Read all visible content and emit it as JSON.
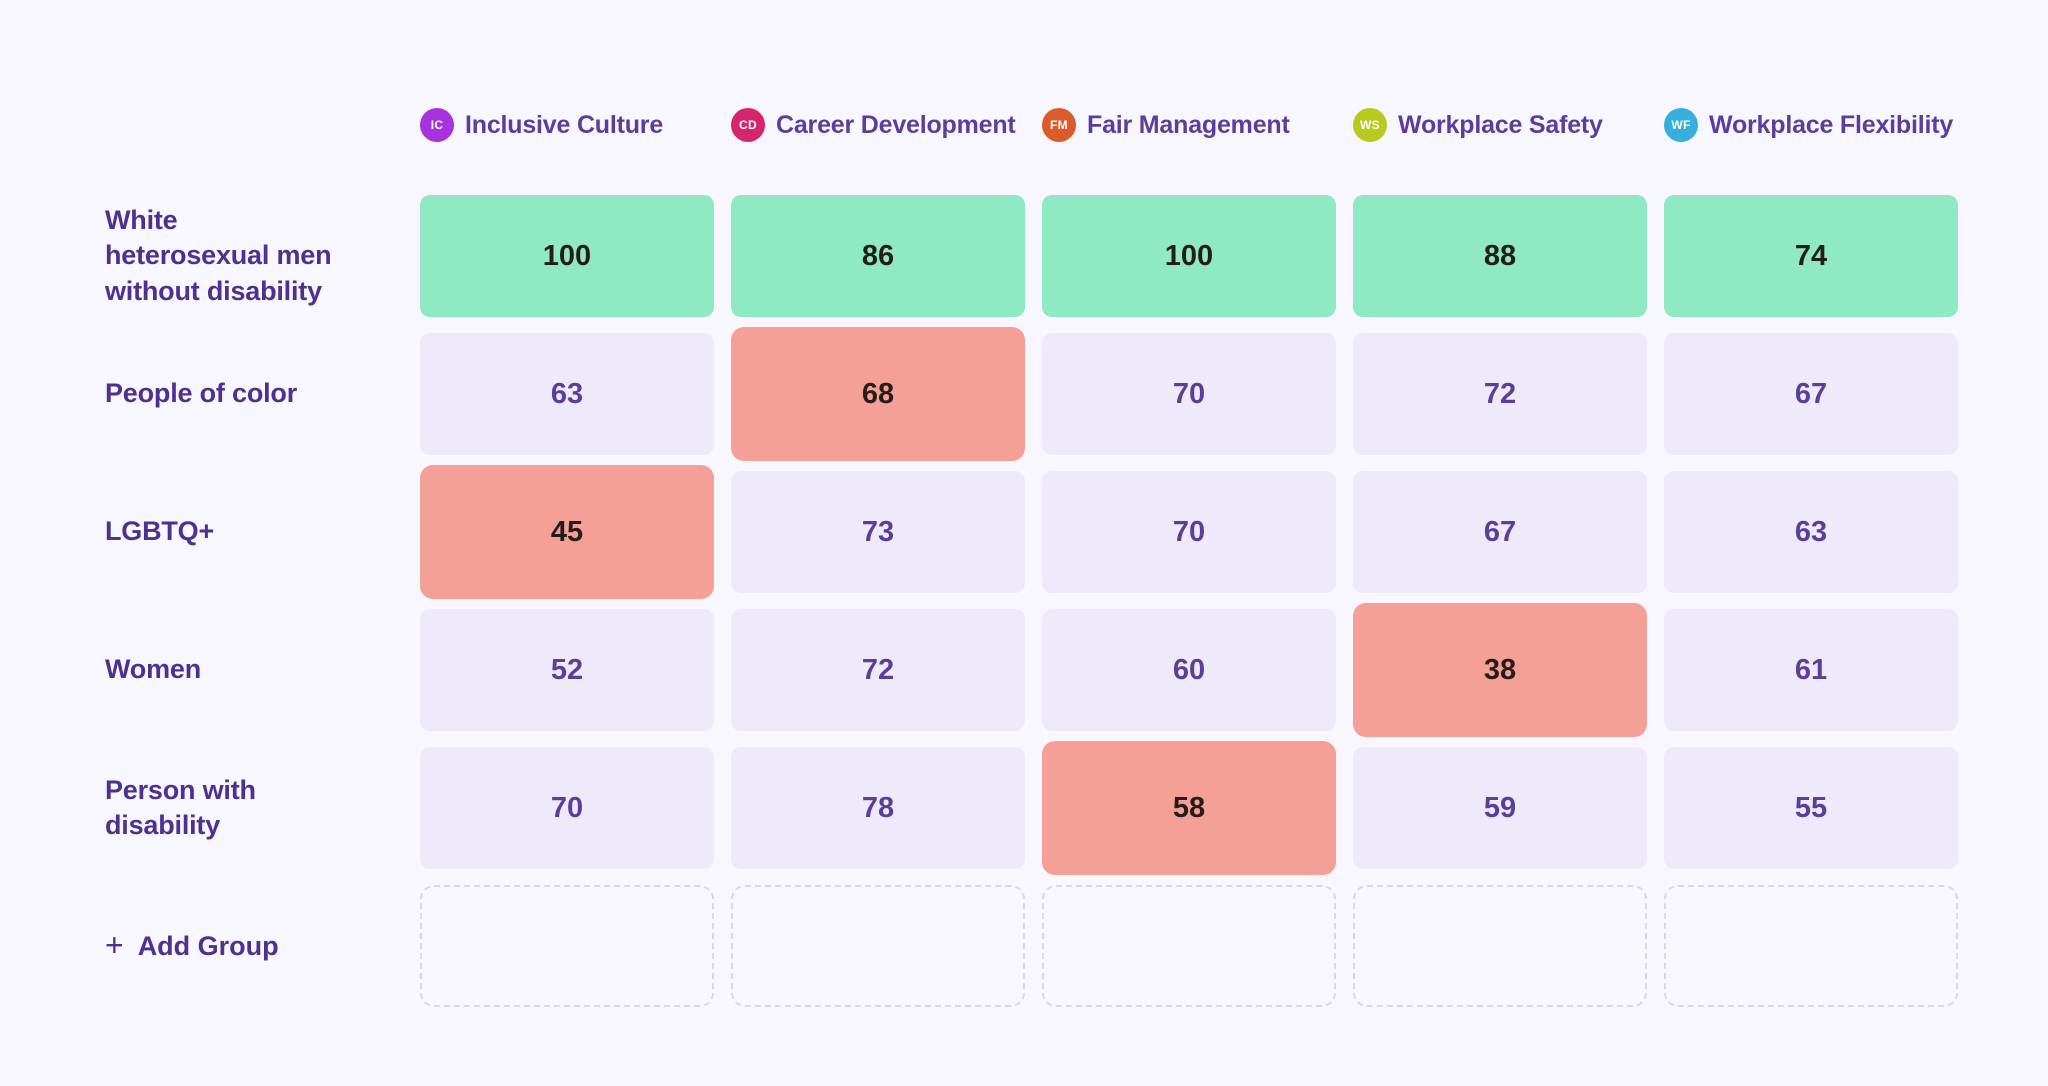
{
  "app": {
    "background": "#f8f6fe"
  },
  "columns": [
    {
      "id": "IC",
      "label": "Inclusive Culture",
      "badge_color": "#a832e0"
    },
    {
      "id": "CD",
      "label": "Career Development",
      "badge_color": "#d6256e"
    },
    {
      "id": "FM",
      "label": "Fair Management",
      "badge_color": "#dc5b2b"
    },
    {
      "id": "WS",
      "label": "Workplace Safety",
      "badge_color": "#b7cb1f"
    },
    {
      "id": "WF",
      "label": "Workplace Flexibility",
      "badge_color": "#36aede"
    }
  ],
  "rows": [
    {
      "label": "White heterosexual men without disability",
      "cells": [
        {
          "value": "100",
          "variant": "green"
        },
        {
          "value": "86",
          "variant": "green"
        },
        {
          "value": "100",
          "variant": "green"
        },
        {
          "value": "88",
          "variant": "green"
        },
        {
          "value": "74",
          "variant": "green"
        }
      ]
    },
    {
      "label": "People of color",
      "cells": [
        {
          "value": "63",
          "variant": "neutral"
        },
        {
          "value": "68",
          "variant": "red"
        },
        {
          "value": "70",
          "variant": "neutral"
        },
        {
          "value": "72",
          "variant": "neutral"
        },
        {
          "value": "67",
          "variant": "neutral"
        }
      ]
    },
    {
      "label": "LGBTQ+",
      "cells": [
        {
          "value": "45",
          "variant": "red"
        },
        {
          "value": "73",
          "variant": "neutral"
        },
        {
          "value": "70",
          "variant": "neutral"
        },
        {
          "value": "67",
          "variant": "neutral"
        },
        {
          "value": "63",
          "variant": "neutral"
        }
      ]
    },
    {
      "label": "Women",
      "cells": [
        {
          "value": "52",
          "variant": "neutral"
        },
        {
          "value": "72",
          "variant": "neutral"
        },
        {
          "value": "60",
          "variant": "neutral"
        },
        {
          "value": "38",
          "variant": "red"
        },
        {
          "value": "61",
          "variant": "neutral"
        }
      ]
    },
    {
      "label": "Person with disability",
      "cells": [
        {
          "value": "70",
          "variant": "neutral"
        },
        {
          "value": "78",
          "variant": "neutral"
        },
        {
          "value": "58",
          "variant": "red"
        },
        {
          "value": "59",
          "variant": "neutral"
        },
        {
          "value": "55",
          "variant": "neutral"
        }
      ]
    }
  ],
  "add_group": {
    "plus": "+",
    "label": "Add Group"
  },
  "colors": {
    "cell_green": "#8fe9c2",
    "cell_red": "#f4a096",
    "cell_neutral": "#efeaf9",
    "dashed_border": "#ddd4f0",
    "row_label_text": "#4c3191",
    "header_text": "#5b3e9b",
    "value_dark_text": "#271d18"
  },
  "chart_data": {
    "type": "heatmap",
    "title": "",
    "categories": [
      "Inclusive Culture",
      "Career Development",
      "Fair Management",
      "Workplace Safety",
      "Workplace Flexibility"
    ],
    "row_labels": [
      "White heterosexual men without disability",
      "People of color",
      "LGBTQ+",
      "Women",
      "Person with disability"
    ],
    "values": [
      [
        100,
        86,
        100,
        88,
        74
      ],
      [
        63,
        68,
        70,
        72,
        67
      ],
      [
        45,
        73,
        70,
        67,
        63
      ],
      [
        52,
        72,
        60,
        38,
        61
      ],
      [
        70,
        78,
        58,
        59,
        55
      ]
    ],
    "green_cells": [
      [
        0,
        0
      ],
      [
        0,
        1
      ],
      [
        0,
        2
      ],
      [
        0,
        3
      ],
      [
        0,
        4
      ]
    ],
    "red_cells": [
      [
        1,
        1
      ],
      [
        2,
        0
      ],
      [
        3,
        3
      ],
      [
        4,
        2
      ]
    ],
    "legend_position": "top"
  }
}
